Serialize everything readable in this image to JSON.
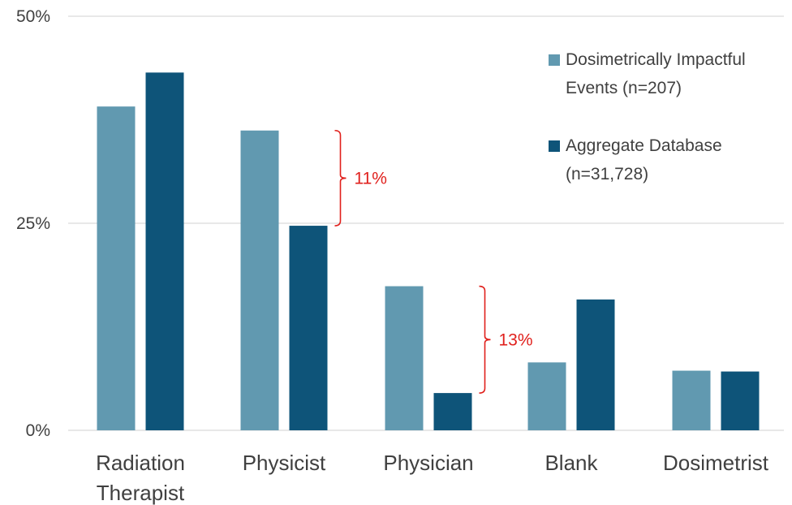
{
  "chart_data": {
    "type": "bar",
    "categories": [
      [
        "Radiation",
        "Therapist"
      ],
      [
        "Physicist"
      ],
      [
        "Physician"
      ],
      [
        "Blank"
      ],
      [
        "Dosimetrist"
      ]
    ],
    "series": [
      {
        "name": [
          "Dosimetrically Impactful",
          "Events (n=207)"
        ],
        "color": "#6199b0",
        "values": [
          39.1,
          36.2,
          17.4,
          8.2,
          7.2
        ]
      },
      {
        "name": [
          "Aggregate Database",
          "(n=31,728)"
        ],
        "color": "#0e5479",
        "values": [
          43.2,
          24.7,
          4.5,
          15.8,
          7.1
        ]
      }
    ],
    "yticks": [
      "0%",
      "25%",
      "50%"
    ],
    "ytick_values": [
      0,
      25,
      50
    ],
    "ylim": [
      0,
      50
    ],
    "grid": true,
    "legend_position": "top-right",
    "annotations": [
      {
        "text": "11%",
        "category_index": 1,
        "from": 36.2,
        "to": 24.7,
        "color": "#e0201c"
      },
      {
        "text": "13%",
        "category_index": 2,
        "from": 17.4,
        "to": 4.5,
        "color": "#e0201c"
      }
    ]
  }
}
